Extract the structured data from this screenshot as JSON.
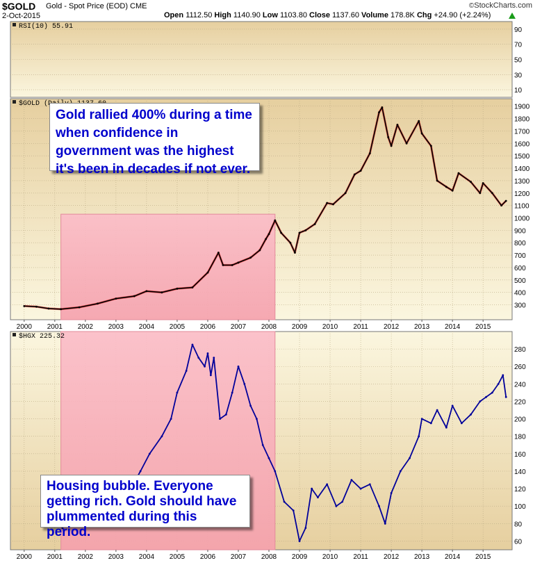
{
  "header": {
    "symbol": "$GOLD",
    "description": "Gold - Spot Price (EOD)",
    "exchange": "CME",
    "date": "2-Oct-2015",
    "open_label": "Open",
    "open": "1112.50",
    "high_label": "High",
    "high": "1140.90",
    "low_label": "Low",
    "low": "1103.80",
    "close_label": "Close",
    "close": "1137.60",
    "volume_label": "Volume",
    "volume": "178.8K",
    "chg_label": "Chg",
    "chg": "+24.90 (+2.24%)",
    "brand": "StockCharts.com",
    "up_icon": "up-triangle-icon"
  },
  "annotations": {
    "gold": "Gold rallied 400% during a time when confidence in government was the highest it's been in decades if not ever.",
    "housing": "Housing bubble. Everyone getting rich. Gold should have plummented during this period."
  },
  "colors": {
    "panel_top": "#e6cf9f",
    "panel_bottom": "#fbf6df",
    "highlight_top": "#fbbcc8",
    "highlight_bottom": "#f5a0ad",
    "gold_up": "#000000",
    "gold_down": "#dd0000",
    "hgx_line": "#00009a",
    "note_text": "#0000cc"
  },
  "chart_data": [
    {
      "type": "line",
      "title": "RSI(10) 55.91",
      "legend": "RSI(10) 55.91",
      "yticks": [
        10,
        30,
        50,
        70,
        90
      ],
      "ylim": [
        0,
        100
      ],
      "grid": true
    },
    {
      "type": "line",
      "title": "$GOLD (Daily) 1137.60",
      "legend": "$GOLD (Daily) 1137.60",
      "x": [
        2000.0,
        2000.4,
        2000.8,
        2001.2,
        2001.8,
        2002.4,
        2003.0,
        2003.6,
        2004.0,
        2004.5,
        2005.0,
        2005.5,
        2006.0,
        2006.35,
        2006.5,
        2006.8,
        2007.0,
        2007.4,
        2007.7,
        2007.9,
        2008.0,
        2008.2,
        2008.4,
        2008.7,
        2008.85,
        2009.0,
        2009.2,
        2009.5,
        2009.9,
        2010.1,
        2010.5,
        2010.8,
        2011.0,
        2011.3,
        2011.6,
        2011.7,
        2011.9,
        2012.0,
        2012.2,
        2012.5,
        2012.9,
        2013.0,
        2013.3,
        2013.5,
        2013.8,
        2014.0,
        2014.2,
        2014.6,
        2014.9,
        2015.0,
        2015.3,
        2015.6,
        2015.75
      ],
      "values": [
        290,
        285,
        270,
        265,
        280,
        310,
        350,
        370,
        410,
        400,
        430,
        440,
        560,
        720,
        620,
        620,
        640,
        680,
        740,
        830,
        870,
        980,
        880,
        800,
        720,
        880,
        900,
        950,
        1120,
        1110,
        1200,
        1350,
        1380,
        1520,
        1850,
        1890,
        1650,
        1580,
        1750,
        1600,
        1780,
        1680,
        1580,
        1300,
        1250,
        1220,
        1360,
        1290,
        1200,
        1280,
        1200,
        1100,
        1137
      ],
      "ylim": [
        180,
        1960
      ],
      "xlim": [
        1999.55,
        2015.95
      ],
      "yticks": [
        300,
        400,
        500,
        600,
        700,
        800,
        900,
        1000,
        1100,
        1200,
        1300,
        1400,
        1500,
        1600,
        1700,
        1800,
        1900
      ],
      "xticks": [
        "2000",
        "2001",
        "2002",
        "2003",
        "2004",
        "2005",
        "2006",
        "2007",
        "2008",
        "2009",
        "2010",
        "2011",
        "2012",
        "2013",
        "2014",
        "2015"
      ],
      "highlight": [
        2001.2,
        2008.2
      ],
      "grid": true
    },
    {
      "type": "line",
      "title": "$HGX 225.32",
      "legend": "$HGX 225.32",
      "x": [
        2001.25,
        2001.6,
        2002.0,
        2002.5,
        2003.0,
        2003.4,
        2003.8,
        2004.1,
        2004.5,
        2004.8,
        2005.0,
        2005.3,
        2005.5,
        2005.7,
        2005.9,
        2006.0,
        2006.1,
        2006.2,
        2006.4,
        2006.6,
        2006.8,
        2007.0,
        2007.2,
        2007.4,
        2007.6,
        2007.8,
        2008.0,
        2008.2,
        2008.5,
        2008.8,
        2009.0,
        2009.2,
        2009.4,
        2009.6,
        2009.9,
        2010.2,
        2010.4,
        2010.7,
        2011.0,
        2011.3,
        2011.6,
        2011.8,
        2012.0,
        2012.3,
        2012.6,
        2012.9,
        2013.0,
        2013.3,
        2013.5,
        2013.8,
        2014.0,
        2014.3,
        2014.6,
        2014.9,
        2015.1,
        2015.3,
        2015.5,
        2015.65,
        2015.75
      ],
      "values": [
        75,
        90,
        85,
        110,
        100,
        115,
        140,
        160,
        180,
        200,
        230,
        255,
        285,
        270,
        260,
        275,
        250,
        270,
        200,
        205,
        230,
        260,
        240,
        215,
        200,
        170,
        155,
        140,
        105,
        95,
        60,
        75,
        120,
        110,
        125,
        100,
        105,
        130,
        120,
        125,
        100,
        80,
        115,
        140,
        155,
        180,
        200,
        195,
        210,
        190,
        215,
        195,
        205,
        220,
        225,
        230,
        240,
        250,
        225
      ],
      "ylim": [
        50,
        300
      ],
      "xlim": [
        1999.55,
        2015.95
      ],
      "yticks": [
        60,
        80,
        100,
        120,
        140,
        160,
        180,
        200,
        220,
        240,
        260,
        280
      ],
      "xticks": [
        "2000",
        "2001",
        "2002",
        "2003",
        "2004",
        "2005",
        "2006",
        "2007",
        "2008",
        "2009",
        "2010",
        "2011",
        "2012",
        "2013",
        "2014",
        "2015"
      ],
      "highlight": [
        2001.2,
        2008.2
      ],
      "grid": true
    }
  ]
}
